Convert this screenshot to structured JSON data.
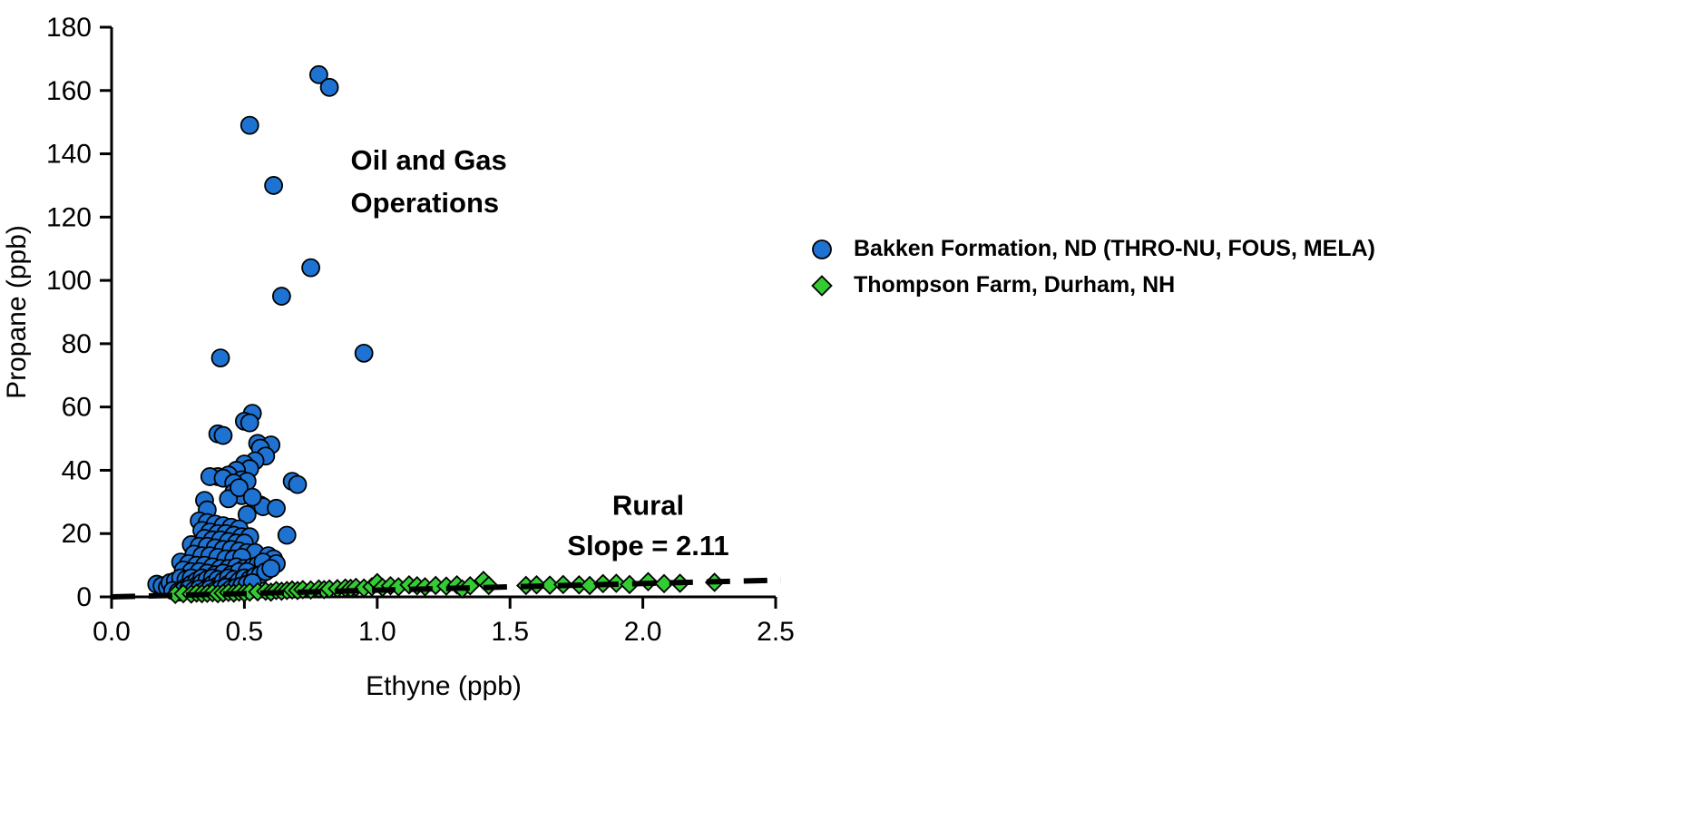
{
  "chart_data": {
    "type": "scatter",
    "title": "",
    "xlabel": "Ethyne (ppb)",
    "ylabel": "Propane (ppb)",
    "xlim": [
      0,
      2.5
    ],
    "ylim": [
      0,
      180
    ],
    "xticks": [
      "0.0",
      "0.5",
      "1.0",
      "1.5",
      "2.0",
      "2.5"
    ],
    "yticks": [
      "0",
      "20",
      "40",
      "60",
      "80",
      "100",
      "120",
      "140",
      "160",
      "180"
    ],
    "grid": false,
    "legend_position": "right",
    "series": [
      {
        "name": "Bakken Formation, ND (THRO-NU, FOUS, MELA)",
        "marker": "circle",
        "color": "#1e73d2",
        "outline": "#000000",
        "points": [
          [
            0.78,
            165
          ],
          [
            0.82,
            161
          ],
          [
            0.52,
            149
          ],
          [
            0.61,
            130
          ],
          [
            0.75,
            104
          ],
          [
            0.64,
            95
          ],
          [
            0.95,
            77
          ],
          [
            0.41,
            75.5
          ],
          [
            0.53,
            58
          ],
          [
            0.5,
            55.5
          ],
          [
            0.52,
            55
          ],
          [
            0.4,
            51.5
          ],
          [
            0.42,
            51
          ],
          [
            0.55,
            48.5
          ],
          [
            0.6,
            48
          ],
          [
            0.56,
            47
          ],
          [
            0.58,
            44.5
          ],
          [
            0.54,
            43
          ],
          [
            0.5,
            42
          ],
          [
            0.52,
            40.5
          ],
          [
            0.47,
            40
          ],
          [
            0.44,
            38.5
          ],
          [
            0.4,
            38
          ],
          [
            0.37,
            38
          ],
          [
            0.42,
            37.5
          ],
          [
            0.49,
            37
          ],
          [
            0.51,
            36.5
          ],
          [
            0.68,
            36.5
          ],
          [
            0.7,
            35.5
          ],
          [
            0.46,
            36
          ],
          [
            0.46,
            33
          ],
          [
            0.49,
            32
          ],
          [
            0.44,
            31
          ],
          [
            0.35,
            30.5
          ],
          [
            0.56,
            29
          ],
          [
            0.57,
            28.5
          ],
          [
            0.62,
            28
          ],
          [
            0.36,
            27.5
          ],
          [
            0.51,
            26
          ],
          [
            0.48,
            34.5
          ],
          [
            0.53,
            31.5
          ],
          [
            0.33,
            24
          ],
          [
            0.36,
            23.5
          ],
          [
            0.39,
            23
          ],
          [
            0.42,
            22.5
          ],
          [
            0.45,
            22
          ],
          [
            0.48,
            21.5
          ],
          [
            0.34,
            21
          ],
          [
            0.37,
            20.5
          ],
          [
            0.4,
            20
          ],
          [
            0.43,
            20
          ],
          [
            0.46,
            19.5
          ],
          [
            0.66,
            19.5
          ],
          [
            0.49,
            19
          ],
          [
            0.52,
            19
          ],
          [
            0.35,
            18.5
          ],
          [
            0.38,
            18
          ],
          [
            0.41,
            18
          ],
          [
            0.44,
            17.5
          ],
          [
            0.47,
            17
          ],
          [
            0.5,
            17
          ],
          [
            0.3,
            16.5
          ],
          [
            0.33,
            16
          ],
          [
            0.36,
            16
          ],
          [
            0.39,
            15.5
          ],
          [
            0.42,
            15
          ],
          [
            0.45,
            15
          ],
          [
            0.48,
            14.5
          ],
          [
            0.51,
            14
          ],
          [
            0.54,
            14
          ],
          [
            0.31,
            13.5
          ],
          [
            0.34,
            13
          ],
          [
            0.37,
            13
          ],
          [
            0.4,
            12.5
          ],
          [
            0.43,
            12
          ],
          [
            0.46,
            12
          ],
          [
            0.49,
            12.5
          ],
          [
            0.59,
            13
          ],
          [
            0.61,
            12
          ],
          [
            0.26,
            11
          ],
          [
            0.29,
            10.5
          ],
          [
            0.32,
            10
          ],
          [
            0.35,
            10
          ],
          [
            0.38,
            9.5
          ],
          [
            0.41,
            9
          ],
          [
            0.44,
            9
          ],
          [
            0.47,
            9.5
          ],
          [
            0.5,
            9
          ],
          [
            0.53,
            9.5
          ],
          [
            0.55,
            10
          ],
          [
            0.57,
            11
          ],
          [
            0.27,
            8.5
          ],
          [
            0.3,
            8
          ],
          [
            0.33,
            8
          ],
          [
            0.36,
            7.5
          ],
          [
            0.39,
            7
          ],
          [
            0.42,
            7.5
          ],
          [
            0.45,
            7
          ],
          [
            0.48,
            8
          ],
          [
            0.51,
            8
          ],
          [
            0.62,
            10.5
          ],
          [
            0.17,
            4
          ],
          [
            0.19,
            3.5
          ],
          [
            0.21,
            3
          ],
          [
            0.22,
            4.5
          ],
          [
            0.24,
            5
          ],
          [
            0.25,
            2.5
          ],
          [
            0.26,
            6
          ],
          [
            0.28,
            5.5
          ],
          [
            0.28,
            3
          ],
          [
            0.3,
            6
          ],
          [
            0.3,
            4
          ],
          [
            0.32,
            5
          ],
          [
            0.32,
            3.5
          ],
          [
            0.34,
            6
          ],
          [
            0.34,
            4.5
          ],
          [
            0.36,
            5.5
          ],
          [
            0.36,
            3
          ],
          [
            0.38,
            6
          ],
          [
            0.38,
            4
          ],
          [
            0.4,
            5.5
          ],
          [
            0.4,
            3.5
          ],
          [
            0.42,
            5
          ],
          [
            0.44,
            6
          ],
          [
            0.44,
            4
          ],
          [
            0.46,
            5.5
          ],
          [
            0.46,
            3.5
          ],
          [
            0.48,
            5
          ],
          [
            0.5,
            6
          ],
          [
            0.52,
            5.5
          ],
          [
            0.54,
            6.5
          ],
          [
            0.56,
            7
          ],
          [
            0.58,
            8
          ],
          [
            0.6,
            9
          ],
          [
            0.23,
            2
          ],
          [
            0.25,
            1.5
          ],
          [
            0.27,
            2
          ],
          [
            0.29,
            2.5
          ],
          [
            0.31,
            2
          ],
          [
            0.33,
            2.5
          ],
          [
            0.35,
            2
          ],
          [
            0.37,
            2.5
          ],
          [
            0.39,
            2
          ],
          [
            0.41,
            2.5
          ],
          [
            0.43,
            3
          ],
          [
            0.45,
            2.5
          ],
          [
            0.47,
            3
          ],
          [
            0.49,
            3.5
          ],
          [
            0.51,
            4
          ],
          [
            0.53,
            4.5
          ]
        ]
      },
      {
        "name": "Thompson Farm, Durham, NH",
        "marker": "diamond",
        "color": "#33cc33",
        "outline": "#000000",
        "points": [
          [
            0.24,
            0.8
          ],
          [
            0.27,
            1
          ],
          [
            0.3,
            0.9
          ],
          [
            0.32,
            1.2
          ],
          [
            0.34,
            1
          ],
          [
            0.36,
            1.1
          ],
          [
            0.38,
            1.3
          ],
          [
            0.4,
            1
          ],
          [
            0.42,
            1.2
          ],
          [
            0.44,
            1.4
          ],
          [
            0.46,
            1.2
          ],
          [
            0.48,
            1.5
          ],
          [
            0.5,
            1.3
          ],
          [
            0.52,
            1.5
          ],
          [
            0.55,
            1.6
          ],
          [
            0.58,
            1.8
          ],
          [
            0.6,
            1.5
          ],
          [
            0.62,
            2
          ],
          [
            0.64,
            1.8
          ],
          [
            0.66,
            2
          ],
          [
            0.68,
            2.2
          ],
          [
            0.7,
            2
          ],
          [
            0.72,
            2.3
          ],
          [
            0.75,
            2.2
          ],
          [
            0.78,
            2.5
          ],
          [
            0.8,
            2.3
          ],
          [
            0.82,
            2.5
          ],
          [
            0.85,
            2.6
          ],
          [
            0.88,
            2.8
          ],
          [
            0.9,
            2.7
          ],
          [
            0.92,
            3
          ],
          [
            0.95,
            2.8
          ],
          [
            0.98,
            3.2
          ],
          [
            1.0,
            4.5
          ],
          [
            1.02,
            3
          ],
          [
            1.05,
            3.5
          ],
          [
            1.08,
            3.2
          ],
          [
            1.12,
            3.8
          ],
          [
            1.15,
            3.5
          ],
          [
            1.18,
            3.2
          ],
          [
            1.22,
            3.6
          ],
          [
            1.26,
            3.4
          ],
          [
            1.3,
            3.8
          ],
          [
            1.32,
            2.5
          ],
          [
            1.35,
            3.5
          ],
          [
            1.4,
            5.2
          ],
          [
            1.42,
            3.6
          ],
          [
            1.56,
            3.6
          ],
          [
            1.6,
            3.8
          ],
          [
            1.65,
            3.7
          ],
          [
            1.7,
            3.9
          ],
          [
            1.76,
            3.8
          ],
          [
            1.8,
            3.6
          ],
          [
            1.85,
            4.2
          ],
          [
            1.9,
            4.3
          ],
          [
            1.95,
            3.9
          ],
          [
            2.02,
            4.8
          ],
          [
            2.08,
            4.2
          ],
          [
            2.14,
            4.3
          ],
          [
            2.27,
            4.6
          ]
        ]
      }
    ],
    "trendline": {
      "label": "Rural slope line",
      "slope": 2.11,
      "intercept": 0,
      "x_range": [
        0,
        2.52
      ],
      "style": "dashed",
      "color": "#000000"
    },
    "annotations": [
      {
        "lines": [
          "Oil and Gas",
          "Operations"
        ],
        "x": 0.9,
        "y": 135,
        "line_height": 13.5,
        "anchor": "start"
      },
      {
        "lines": [
          "Rural",
          "Slope = 2.11"
        ],
        "x": 2.02,
        "y": 26,
        "line_height": 12.8,
        "anchor": "middle"
      }
    ]
  }
}
